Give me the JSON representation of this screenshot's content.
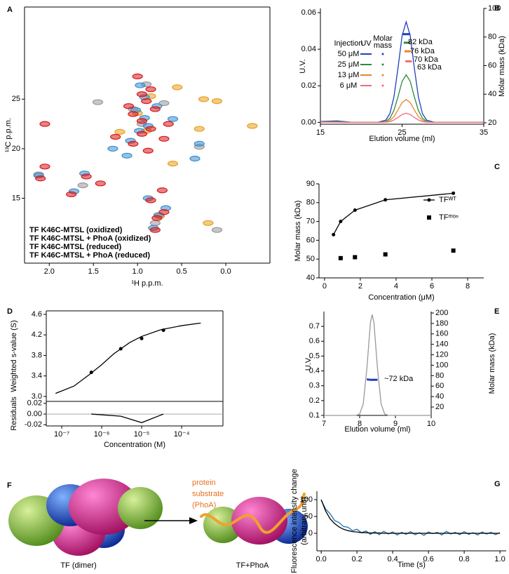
{
  "chart_data": [
    {
      "type": "contour",
      "label": "A",
      "xlabel": "¹H p.p.m.",
      "ylabel": "¹³C p.p.m.",
      "xlim": [
        2.28,
        -0.5
      ],
      "ylim": [
        8.45,
        34.3
      ],
      "xticks": [
        {
          "value": 2,
          "label": "2.0"
        },
        1.5,
        {
          "value": 1,
          "label": "1.0"
        },
        0.5,
        {
          "value": 0,
          "label": "0.0"
        }
      ],
      "yticks": [
        15,
        20,
        25
      ],
      "series": [
        {
          "name": "TF K46C-MTSL (oxidized)",
          "color": "#d7191c",
          "mode": "peaks",
          "x": [
            0.8,
            0.78,
            0.85,
            0.7,
            0.72,
            1.75,
            1.58,
            1.42,
            2.1,
            2.05,
            1.05,
            0.95,
            0.85,
            0.95,
            1.05,
            0.8,
            0.9,
            0.95,
            0.85,
            1.25,
            0.7,
            2.05,
            1.0,
            0.65,
            0.88,
            1.1
          ],
          "values": [
            11.8,
            13.0,
            14.8,
            13.6,
            15.8,
            15.4,
            17.2,
            16.5,
            17.0,
            18.2,
            20.5,
            21.5,
            22.0,
            22.8,
            23.5,
            24.0,
            24.8,
            25.5,
            26.0,
            21.2,
            21.0,
            22.5,
            27.3,
            22.5,
            19.8,
            24.3
          ]
        },
        {
          "name": "TF K46C-MTSL + PhoA (oxidized)",
          "color": "#3a8fd0",
          "mode": "peaks",
          "x": [
            0.82,
            0.76,
            0.88,
            0.68,
            1.72,
            1.6,
            2.12,
            1.08,
            0.98,
            0.88,
            0.92,
            1.02,
            0.78,
            0.92,
            0.3,
            0.35,
            1.12,
            0.6,
            0.97,
            1.28
          ],
          "values": [
            12.0,
            13.3,
            15.0,
            14.0,
            15.7,
            17.5,
            17.3,
            20.8,
            21.8,
            22.3,
            23.1,
            23.9,
            24.3,
            25.2,
            20.5,
            19.0,
            19.3,
            23.0,
            26.4,
            20.0
          ]
        },
        {
          "name": "TF K46C-MTSL (reduced)",
          "color": "#e8a020",
          "mode": "peaks",
          "x": [
            0.2,
            0.3,
            -0.3,
            0.1,
            0.75,
            0.9,
            1.0,
            0.85,
            0.6,
            1.2,
            0.25,
            0.55
          ],
          "values": [
            12.5,
            22.0,
            22.3,
            24.8,
            13.2,
            21.8,
            23.6,
            25.3,
            18.5,
            21.7,
            25.0,
            26.2
          ]
        },
        {
          "name": "TF K46C-MTSL + PhoA (reduced)",
          "color": "#999999",
          "mode": "peaks",
          "x": [
            0.1,
            1.45,
            0.8,
            0.95,
            2.12,
            1.62,
            1.05,
            0.9,
            0.3,
            0.7
          ],
          "values": [
            11.8,
            24.7,
            12.5,
            22.5,
            17.4,
            16.3,
            24.0,
            26.5,
            20.2,
            24.6
          ]
        }
      ]
    },
    {
      "type": "line",
      "label": "B",
      "xlabel": "Elution volume (ml)",
      "ylabel": "U.V.",
      "y2label": "Molar mass (kDa)",
      "ylabel_color": "#999999",
      "ytick_color": "#999999",
      "y2label_color": "#2b3bd0",
      "y2tick_color": "#2b3bd0",
      "xlim": [
        15,
        35
      ],
      "ylim": [
        -0.001,
        0.0623
      ],
      "y2lim": [
        19,
        100
      ],
      "xticks": [
        15,
        25,
        35
      ],
      "yticks": [
        {
          "value": 0,
          "label": "0.00"
        },
        0.02,
        0.04,
        0.06
      ],
      "y2ticks": [
        20,
        40,
        60,
        80,
        100
      ],
      "legend_headers": [
        "Injection",
        "UV",
        [
          "Molar",
          "mass"
        ]
      ],
      "series": [
        {
          "name": "50 μM",
          "color": "#1f3fbf",
          "mode": "lines",
          "x": [
            15,
            17,
            19,
            21,
            22,
            23,
            23.5,
            24,
            24.5,
            25,
            25.5,
            26,
            26.5,
            27,
            27.5,
            28,
            29,
            31,
            33,
            35
          ],
          "values": [
            0.0005,
            0.0008,
            0,
            0,
            0,
            0.0012,
            0.0047,
            0.0138,
            0.0297,
            0.0473,
            0.055,
            0.0473,
            0.0297,
            0.0138,
            0.0047,
            0.0012,
            0,
            0,
            0,
            0
          ]
        },
        {
          "name": "25 μM",
          "color": "#2e8b3a",
          "mode": "lines",
          "x": [
            15,
            17,
            19,
            21,
            22,
            23,
            23.5,
            24,
            24.5,
            25,
            25.5,
            26,
            26.5,
            27,
            27.5,
            28,
            29,
            31,
            33,
            35
          ],
          "values": [
            0.0003,
            0.0004,
            0,
            0,
            0,
            0.0005,
            0.0022,
            0.0065,
            0.014,
            0.0224,
            0.026,
            0.0224,
            0.014,
            0.0065,
            0.0022,
            0.0005,
            0,
            0,
            0,
            0
          ]
        },
        {
          "name": "13 μM",
          "color": "#e8862a",
          "mode": "lines",
          "x": [
            15,
            17,
            19,
            21,
            22,
            23,
            23.5,
            24,
            24.5,
            25,
            25.5,
            26,
            26.5,
            27,
            27.5,
            28,
            29,
            31,
            33,
            35
          ],
          "values": [
            0.0002,
            0.0002,
            0,
            0,
            0,
            0.0003,
            0.0011,
            0.0031,
            0.0068,
            0.0108,
            0.0125,
            0.0108,
            0.0068,
            0.0031,
            0.0011,
            0.0003,
            0,
            0,
            0,
            0
          ]
        },
        {
          "name": "6 μM",
          "color": "#f06b7a",
          "mode": "lines",
          "x": [
            15,
            17,
            19,
            21,
            22,
            23,
            23.5,
            24,
            24.5,
            25,
            25.5,
            26,
            26.5,
            27,
            27.5,
            28,
            29,
            31,
            33,
            35
          ],
          "values": [
            0.0001,
            0.0001,
            0,
            0,
            0,
            0.0001,
            0.0004,
            0.0013,
            0.0027,
            0.0043,
            0.005,
            0.0043,
            0.0027,
            0.0013,
            0.0004,
            0.0001,
            0,
            0,
            0,
            0
          ]
        },
        {
          "color": "#1f3fbf",
          "mode": "lines",
          "axis": "y2",
          "x": [
            25.0,
            25.5,
            26.0
          ],
          "values": [
            82,
            82,
            82
          ]
        },
        {
          "color": "#2e8b3a",
          "mode": "lines",
          "axis": "y2",
          "x": [
            25.2,
            25.6,
            26.0
          ],
          "values": [
            76,
            76,
            76
          ]
        },
        {
          "color": "#e8862a",
          "mode": "lines",
          "axis": "y2",
          "x": [
            25.3,
            25.7,
            26.1
          ],
          "values": [
            70,
            70,
            70
          ]
        },
        {
          "color": "#f06b7a",
          "mode": "lines",
          "axis": "y2",
          "x": [
            25.4,
            25.8,
            26.2
          ],
          "values": [
            63,
            63,
            63
          ]
        }
      ],
      "annotations": [
        {
          "text": "82 kDa",
          "color": "#1f3fbf"
        },
        {
          "text": "76 kDa",
          "color": "#2e8b3a"
        },
        {
          "text": "70 kDa",
          "color": "#e8862a"
        },
        {
          "text": "63 kDa",
          "color": "#f06b7a"
        }
      ]
    },
    {
      "type": "scatter",
      "label": "C",
      "xlabel": "Concentration (μM)",
      "ylabel": "Molar mass (kDa)",
      "ylabel_color": "#2b3bd0",
      "xlim": [
        -0.31,
        8.9
      ],
      "ylim": [
        40,
        90
      ],
      "xticks": [
        0,
        2,
        4,
        6,
        8
      ],
      "yticks": [
        40,
        50,
        60,
        70,
        80,
        90
      ],
      "series": [
        {
          "name": "TFᵂᵀ",
          "color": "#000000",
          "mode": "lines+markers",
          "marker": "circle",
          "x": [
            0.5,
            0.9,
            1.7,
            3.4,
            7.2
          ],
          "values": [
            63,
            70,
            76,
            81.5,
            85
          ]
        },
        {
          "name": "TFᵐᵒⁿ",
          "color": "#000000",
          "mode": "markers",
          "marker": "square",
          "x": [
            0.9,
            1.7,
            3.4,
            7.2
          ],
          "values": [
            50.5,
            51,
            52.5,
            54.5
          ]
        }
      ]
    },
    {
      "type": "scatter",
      "label": "D",
      "ylabel": "Weighted s-value (S)",
      "xlog": true,
      "xlim": [
        4.1e-08,
        0.00108
      ],
      "ylim": [
        2.904,
        4.668
      ],
      "yticks": [
        {
          "value": 3,
          "label": "3.0"
        },
        3.4,
        3.8,
        4.2,
        4.6
      ],
      "series": [
        {
          "color": "#000000",
          "mode": "lines",
          "x": [
            7e-08,
            2e-07,
            5e-07,
            1e-06,
            2e-06,
            5e-06,
            1e-05,
            3e-05,
            0.0001,
            0.0003
          ],
          "values": [
            3.06,
            3.2,
            3.43,
            3.62,
            3.83,
            4.05,
            4.17,
            4.3,
            4.38,
            4.43
          ]
        },
        {
          "color": "#000000",
          "mode": "markers",
          "marker": "circle",
          "x": [
            5.5e-07,
            3e-06,
            1e-05,
            3.5e-05
          ],
          "values": [
            3.47,
            3.93,
            4.13,
            4.29
          ]
        }
      ]
    },
    {
      "type": "line",
      "ylabel": "Residuals",
      "xlabel": "Concentration (M)",
      "xlog": true,
      "zero_line": true,
      "xlim": [
        4.1e-08,
        0.00108
      ],
      "ylim": [
        -0.0222,
        0.0237
      ],
      "xticks": [
        {
          "value": 1e-07,
          "label": "10⁻⁷"
        },
        {
          "value": 1e-06,
          "label": "10⁻⁶"
        },
        {
          "value": 1e-05,
          "label": "10⁻⁵"
        },
        {
          "value": 0.0001,
          "label": "10⁻⁴"
        }
      ],
      "yticks": [
        -0.02,
        {
          "value": 0,
          "label": "0.00"
        },
        0.02
      ],
      "series": [
        {
          "color": "#000000",
          "mode": "lines",
          "x": [
            5.5e-07,
            3e-06,
            1e-05,
            3.5e-05
          ],
          "values": [
            0.0,
            -0.004,
            -0.016,
            0.0
          ]
        }
      ]
    },
    {
      "type": "line",
      "label": "E",
      "xlabel": "Elution volume (ml)",
      "ylabel": "U.V.",
      "y2label": "Molar mass (kDa)",
      "ylabel_color": "#999999",
      "y2label_color": "#2b3bd0",
      "y2tick_color": "#2b3bd0",
      "xlim": [
        7,
        10
      ],
      "ylim": [
        0.1,
        0.8
      ],
      "y2lim": [
        3.9,
        202.7
      ],
      "xticks": [
        7,
        8,
        9,
        10
      ],
      "yticks": [
        0.1,
        0.2,
        0.3,
        0.4,
        0.5,
        0.6,
        0.7
      ],
      "y2ticks": [
        20,
        40,
        60,
        80,
        100,
        120,
        140,
        160,
        180,
        200
      ],
      "series": [
        {
          "color": "#999999",
          "mode": "lines",
          "x": [
            7,
            7.5,
            7.8,
            7.9,
            8.0,
            8.1,
            8.2,
            8.3,
            8.35,
            8.4,
            8.5,
            8.6,
            8.7,
            8.8,
            9.0,
            9.5,
            10
          ],
          "values": [
            0.1,
            0.1,
            0.1,
            0.1006,
            0.1097,
            0.1776,
            0.411,
            0.7236,
            0.78,
            0.7236,
            0.411,
            0.1776,
            0.1097,
            0.1006,
            0.1,
            0.1,
            0.1
          ]
        },
        {
          "color": "#1f3fbf",
          "mode": "lines",
          "axis": "y2",
          "x": [
            8.2,
            8.3,
            8.4,
            8.5
          ],
          "values": [
            73,
            72,
            72,
            72
          ]
        }
      ],
      "annotations": [
        {
          "text": "~72 kDa",
          "color": "#1f3fbf"
        }
      ]
    },
    {
      "type": "line",
      "label": "G",
      "xlabel": "Time (s)",
      "ylabel": [
        "Fluorescence intensity change",
        "(arbitrary unit)"
      ],
      "xlim": [
        -0.024,
        1.035
      ],
      "ylim": [
        -52,
        125
      ],
      "xticks": [
        {
          "value": 0,
          "label": "0.0"
        },
        0.2,
        0.4,
        0.6,
        0.8,
        {
          "value": 1,
          "label": "1.0"
        }
      ],
      "yticks": [
        0,
        50,
        100
      ],
      "series": [
        {
          "color": "#1f6fa8",
          "mode": "lines",
          "x": [
            0,
            0.025,
            0.05,
            0.075,
            0.1,
            0.125,
            0.15,
            0.175,
            0.2,
            0.225,
            0.25,
            0.275,
            0.3,
            0.325,
            0.35,
            0.375,
            0.4,
            0.425,
            0.45,
            0.475,
            0.5,
            0.525,
            0.55,
            0.575,
            0.6,
            0.625,
            0.65,
            0.675,
            0.7,
            0.725,
            0.75,
            0.775,
            0.8,
            0.825,
            0.85,
            0.875,
            0.9,
            0.925,
            0.95,
            0.975,
            1.0
          ],
          "values": [
            98,
            72,
            58,
            38,
            32,
            20,
            18,
            8,
            12,
            2,
            7,
            -3,
            5,
            -4,
            6,
            -2,
            4,
            -5,
            3,
            -3,
            5,
            -4,
            2,
            -6,
            4,
            -1,
            3,
            -5,
            6,
            -2,
            3,
            -4,
            5,
            -3,
            2,
            -5,
            4,
            -2,
            3,
            -4,
            2
          ]
        },
        {
          "color": "#000000",
          "mode": "lines",
          "x": [
            0,
            0.025,
            0.05,
            0.075,
            0.1,
            0.125,
            0.15,
            0.175,
            0.2,
            0.225,
            0.25,
            0.275,
            0.3,
            0.325,
            0.35,
            0.375,
            0.4,
            0.425,
            0.45,
            0.475,
            0.5,
            0.525,
            0.55,
            0.575,
            0.6,
            0.625,
            0.65,
            0.675,
            0.7,
            0.725,
            0.75,
            0.775,
            0.8,
            0.825,
            0.85,
            0.875,
            0.9,
            0.925,
            0.95,
            0.975,
            1.0
          ],
          "values": [
            100,
            66,
            43,
            29,
            19,
            12,
            8,
            5,
            4,
            2,
            2,
            1,
            1,
            1,
            0,
            0,
            0,
            0,
            0,
            0,
            0,
            0,
            0,
            0,
            0,
            0,
            0,
            0,
            0,
            0,
            0,
            0,
            0,
            0,
            0,
            0,
            0,
            0,
            0,
            0,
            0
          ]
        }
      ]
    }
  ],
  "diagram": {
    "label": "F",
    "arrow_text": [
      "protein",
      "substrate",
      "(PhoA)"
    ],
    "captions": [
      "TF (dimer)",
      "TF+PhoA"
    ]
  }
}
